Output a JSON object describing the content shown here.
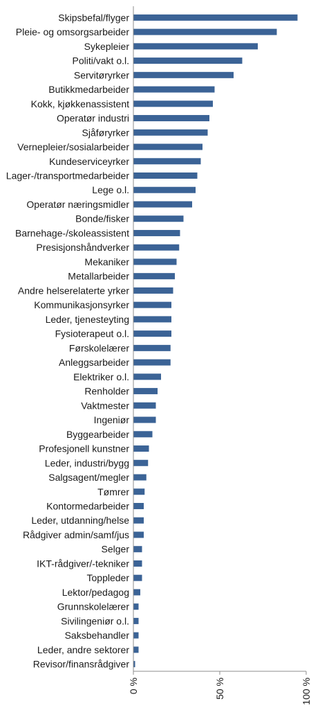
{
  "chart_data": {
    "type": "bar",
    "orientation": "horizontal",
    "title": "",
    "xlabel": "",
    "ylabel": "",
    "xlim": [
      0,
      100
    ],
    "x_ticks": [
      0,
      50,
      100
    ],
    "x_tick_labels": [
      "0 %",
      "50 %",
      "100 %"
    ],
    "grid": false,
    "legend": "none",
    "bar_color": "#3b6396",
    "categories": [
      "Skipsbefal/flyger",
      "Pleie- og omsorgsarbeider",
      "Sykepleier",
      "Politi/vakt o.l.",
      "Servitøryrker",
      "Butikkmedarbeider",
      "Kokk, kjøkkenassistent",
      "Operatør industri",
      "Sjåføryrker",
      "Vernepleier/sosialarbeider",
      "Kundeserviceyrker",
      "Lager-/transportmedarbeider",
      "Lege o.l.",
      "Operatør næringsmidler",
      "Bonde/fisker",
      "Barnehage-/skoleassistent",
      "Presisjonshåndverker",
      "Mekaniker",
      "Metallarbeider",
      "Andre helserelaterte yrker",
      "Kommunikasjonsyrker",
      "Leder, tjenesteyting",
      "Fysioterapeut o.l.",
      "Førskolelærer",
      "Anleggsarbeider",
      "Elektriker o.l.",
      "Renholder",
      "Vaktmester",
      "Ingeniør",
      "Byggearbeider",
      "Profesjonell kunstner",
      "Leder, industri/bygg",
      "Salgsagent/megler",
      "Tømrer",
      "Kontormedarbeider",
      "Leder, utdanning/helse",
      "Rådgiver admin/samf/jus",
      "Selger",
      "IKT-rådgiver/-tekniker",
      "Toppleder",
      "Lektor/pedagog",
      "Grunnskolelærer",
      "Sivilingeniør o.l.",
      "Saksbehandler",
      "Leder, andre sektorer",
      "Revisor/finansrådgiver"
    ],
    "values": [
      95,
      83,
      72,
      63,
      58,
      47,
      46,
      44,
      43,
      40,
      39,
      37,
      36,
      34,
      29,
      27,
      26.5,
      25,
      24,
      23,
      22,
      22,
      22,
      21.5,
      21.5,
      16,
      14,
      13,
      13,
      11,
      9,
      8.5,
      7.5,
      6.5,
      6,
      6,
      6,
      5,
      5,
      5,
      4,
      3,
      3,
      3,
      3,
      1
    ]
  }
}
